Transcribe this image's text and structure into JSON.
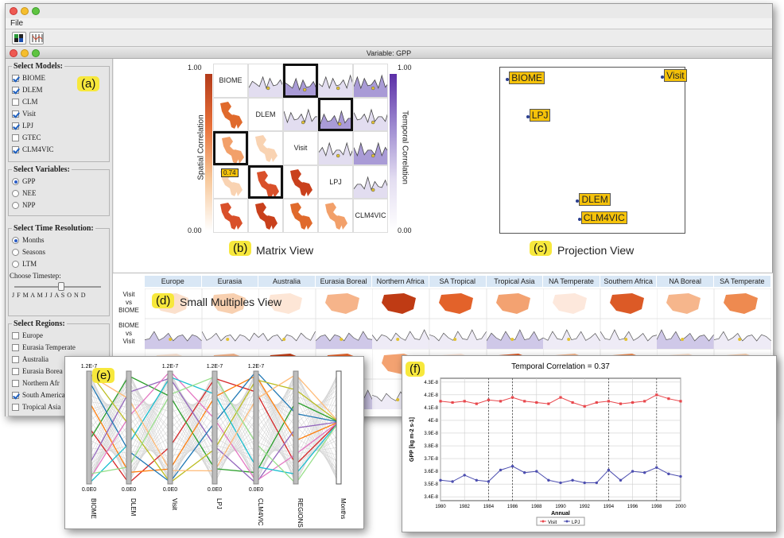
{
  "menu": {
    "file": "File"
  },
  "window": {
    "title": "Variable: GPP"
  },
  "panel_tags": {
    "a": "(a)",
    "b": "(b)",
    "c": "(c)",
    "d": "(d)",
    "e": "(e)",
    "f": "(f)"
  },
  "models_panel": {
    "legend": "Select Models:",
    "items": [
      {
        "label": "BIOME",
        "checked": true
      },
      {
        "label": "DLEM",
        "checked": true
      },
      {
        "label": "CLM",
        "checked": false
      },
      {
        "label": "Visit",
        "checked": true
      },
      {
        "label": "LPJ",
        "checked": true
      },
      {
        "label": "GTEC",
        "checked": false
      },
      {
        "label": "CLM4VIC",
        "checked": true
      }
    ]
  },
  "variables_panel": {
    "legend": "Select Variables:",
    "items": [
      {
        "label": "GPP",
        "selected": true
      },
      {
        "label": "NEE",
        "selected": false
      },
      {
        "label": "NPP",
        "selected": false
      }
    ]
  },
  "time_panel": {
    "legend": "Select Time Resolution:",
    "items": [
      {
        "label": "Months",
        "selected": true
      },
      {
        "label": "Seasons",
        "selected": false
      },
      {
        "label": "LTM",
        "selected": false
      }
    ],
    "timestep_label": "Choose Timestep:",
    "month_letters": "J F M A M J J A S O N D",
    "slider_value_fraction": 0.52
  },
  "regions_panel": {
    "legend": "Select Regions:",
    "items": [
      {
        "label": "Europe",
        "checked": false
      },
      {
        "label": "Eurasia Temperate",
        "checked": false
      },
      {
        "label": "Australia",
        "checked": false
      },
      {
        "label": "Eurasia Borea",
        "checked": false
      },
      {
        "label": "Northern Afr",
        "checked": false
      },
      {
        "label": "South America",
        "checked": true
      },
      {
        "label": "Tropical Asia",
        "checked": false
      }
    ]
  },
  "matrix_view": {
    "caption": "Matrix View",
    "models": [
      "BIOME",
      "DLEM",
      "Visit",
      "LPJ",
      "CLM4VIC"
    ],
    "spatial_label": "Spatial Correlation",
    "temporal_label": "Temporal Correlation",
    "scale_max": "1.00",
    "scale_min": "0.00",
    "highlight_value": "0.74"
  },
  "projection_view": {
    "caption": "Projection View",
    "points": [
      {
        "label": "BIOME",
        "x": 0.04,
        "y": 0.93
      },
      {
        "label": "Visit",
        "x": 0.88,
        "y": 0.94
      },
      {
        "label": "LPJ",
        "x": 0.15,
        "y": 0.7
      },
      {
        "label": "DLEM",
        "x": 0.42,
        "y": 0.19
      },
      {
        "label": "CLM4VIC",
        "x": 0.43,
        "y": 0.08
      }
    ]
  },
  "small_multiples": {
    "caption": "Small Multiples View",
    "regions": [
      "Europe",
      "Eurasia Temperate",
      "Australia",
      "Eurasia Boreal",
      "Northern Africa",
      "SA Tropical",
      "Tropical Asia",
      "NA Temperate",
      "Southern Africa",
      "NA Boreal",
      "SA Temperate"
    ],
    "rows": [
      {
        "l1": "Visit",
        "l2": "vs",
        "l3": "BIOME"
      },
      {
        "l1": "BIOME",
        "l2": "vs",
        "l3": "Visit"
      }
    ]
  },
  "parallel_coords": {
    "axes": [
      {
        "name": "BIOME",
        "top": "1.2E-7",
        "bottom": "0.0E0"
      },
      {
        "name": "DLEM",
        "top": "",
        "bottom": "0.0E0"
      },
      {
        "name": "Visit",
        "top": "1.2E-7",
        "bottom": "0.0E0"
      },
      {
        "name": "LPJ",
        "top": "1.2E-7",
        "bottom": "0.0E0"
      },
      {
        "name": "CLM4VIC",
        "top": "1.2E-7",
        "bottom": "0.0E0"
      },
      {
        "name": "REGIONS",
        "top": "",
        "bottom": ""
      },
      {
        "name": "Months",
        "top": "",
        "bottom": ""
      }
    ]
  },
  "chart_data": {
    "type": "line",
    "title": "Temporal Correlation = 0.37",
    "xlabel": "Annual",
    "ylabel": "GPP [kg m-2 s-1]",
    "x": [
      1980,
      1981,
      1982,
      1983,
      1984,
      1985,
      1986,
      1987,
      1988,
      1989,
      1990,
      1991,
      1992,
      1993,
      1994,
      1995,
      1996,
      1997,
      1998,
      1999,
      2000
    ],
    "x_ticks": [
      "1980",
      "1982",
      "1984",
      "1986",
      "1988",
      "1990",
      "1992",
      "1994",
      "1996",
      "1998",
      "2000"
    ],
    "y_ticks": [
      "3.4E-8",
      "3.5E-8",
      "3.6E-8",
      "3.7E-8",
      "3.8E-8",
      "3.9E-8",
      "4E-8",
      "4.1E-8",
      "4.2E-8",
      "4.3E-8"
    ],
    "ylim": [
      3.37e-08,
      4.33e-08
    ],
    "series": [
      {
        "name": "Visit",
        "color": "#e8474c",
        "values": [
          4.15e-08,
          4.14e-08,
          4.15e-08,
          4.13e-08,
          4.16e-08,
          4.15e-08,
          4.18e-08,
          4.15e-08,
          4.14e-08,
          4.13e-08,
          4.18e-08,
          4.14e-08,
          4.11e-08,
          4.14e-08,
          4.15e-08,
          4.13e-08,
          4.14e-08,
          4.15e-08,
          4.2e-08,
          4.17e-08,
          4.15e-08
        ]
      },
      {
        "name": "LPJ",
        "color": "#4d4fb0",
        "values": [
          3.53e-08,
          3.52e-08,
          3.57e-08,
          3.53e-08,
          3.52e-08,
          3.61e-08,
          3.64e-08,
          3.59e-08,
          3.6e-08,
          3.53e-08,
          3.51e-08,
          3.53e-08,
          3.51e-08,
          3.51e-08,
          3.61e-08,
          3.53e-08,
          3.6e-08,
          3.59e-08,
          3.63e-08,
          3.58e-08,
          3.56e-08
        ]
      }
    ],
    "legend_placement": "bottom",
    "grid": true
  }
}
